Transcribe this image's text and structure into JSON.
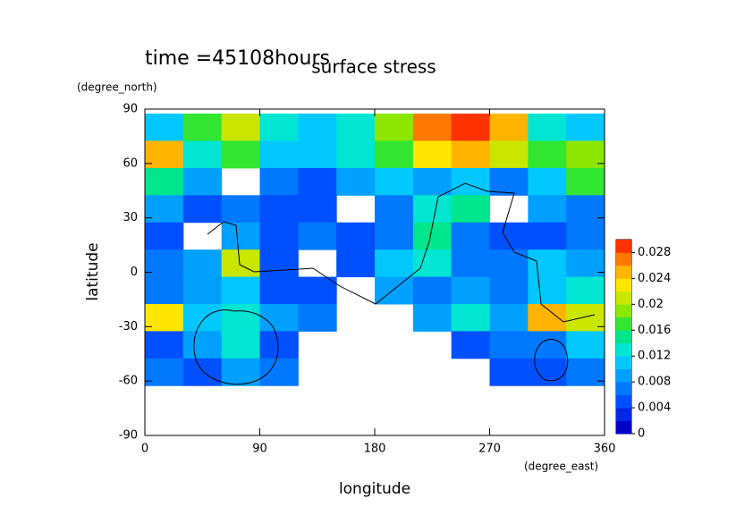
{
  "chart_data": {
    "type": "heatmap",
    "title": "surface stress",
    "subtitle": "time =45108hours",
    "x_label": "longitude",
    "x_unit": "(degree_east)",
    "y_label": "latitude",
    "y_unit": "(degree_north)",
    "x": [
      15,
      45,
      75,
      105,
      135,
      165,
      195,
      225,
      255,
      285,
      315,
      345
    ],
    "y": [
      80,
      65,
      50,
      35,
      20,
      5,
      -10,
      -25,
      -40,
      -55
    ],
    "z": [
      [
        0.01,
        0.016,
        0.02,
        0.012,
        0.01,
        0.012,
        0.018,
        0.026,
        0.028,
        0.024,
        0.012,
        0.01
      ],
      [
        0.024,
        0.012,
        0.016,
        0.01,
        0.01,
        0.012,
        0.016,
        0.022,
        0.024,
        0.02,
        0.016,
        0.018
      ],
      [
        0.014,
        0.008,
        null,
        0.006,
        0.004,
        0.008,
        0.01,
        0.008,
        0.01,
        0.006,
        0.01,
        0.016
      ],
      [
        0.008,
        0.004,
        0.006,
        0.004,
        0.004,
        null,
        0.006,
        0.012,
        0.014,
        null,
        0.008,
        0.006
      ],
      [
        0.004,
        null,
        0.008,
        0.004,
        0.006,
        0.004,
        0.006,
        0.014,
        0.006,
        0.004,
        0.004,
        0.006
      ],
      [
        0.006,
        0.008,
        0.02,
        0.004,
        null,
        0.004,
        0.01,
        0.012,
        0.006,
        0.006,
        0.01,
        0.008
      ],
      [
        0.006,
        0.008,
        0.01,
        0.004,
        0.004,
        null,
        0.008,
        0.006,
        0.008,
        0.006,
        0.01,
        0.012
      ],
      [
        0.022,
        0.01,
        0.012,
        0.008,
        0.006,
        null,
        null,
        0.008,
        0.012,
        0.008,
        0.024,
        0.02
      ],
      [
        0.004,
        0.008,
        0.012,
        0.004,
        null,
        null,
        null,
        null,
        0.004,
        0.006,
        0.006,
        0.01
      ],
      [
        0.006,
        0.004,
        0.008,
        0.006,
        null,
        null,
        null,
        null,
        null,
        0.004,
        0.004,
        0.006
      ]
    ],
    "xlim": [
      0,
      360
    ],
    "xticks": [
      0,
      90,
      180,
      270,
      360
    ],
    "ylim": [
      -90,
      90
    ],
    "yticks": [
      -90,
      -60,
      -30,
      0,
      30,
      60,
      90
    ],
    "clim": [
      0,
      0.03
    ],
    "cticks": [
      0,
      0.004,
      0.008,
      0.012,
      0.016,
      0.02,
      0.024,
      0.028
    ],
    "colors": [
      "#0000c8",
      "#0028e6",
      "#0050ff",
      "#0078ff",
      "#00a0ff",
      "#00c8ff",
      "#00e6d2",
      "#00e68c",
      "#32e632",
      "#8ce600",
      "#c8e600",
      "#ffe600",
      "#ffb400",
      "#ff7800",
      "#ff3200"
    ]
  }
}
